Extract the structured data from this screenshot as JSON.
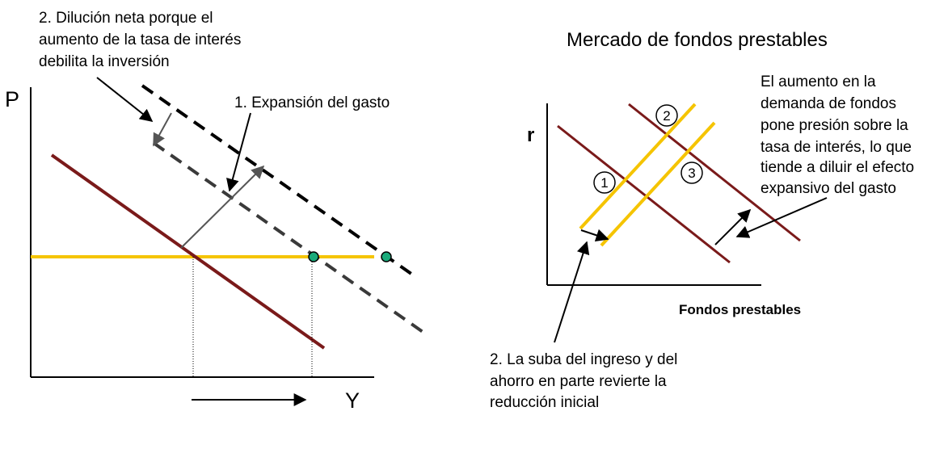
{
  "colors": {
    "demand_dark_red": "#7a1a1a",
    "supply_yellow": "#f5c400",
    "equilibrium_dot": "#1aaa7a",
    "dashed_dark": "#000000",
    "dashed_gray": "#3a3a3a",
    "arrow_gray": "#555555"
  },
  "left_diagram": {
    "y_axis_label": "P",
    "x_axis_label": "Y",
    "annotation_dilution": [
      "2. Dilución neta porque el",
      "aumento de la tasa de interés",
      "debilita la inversión"
    ],
    "annotation_expansion": "1. Expansión del gasto"
  },
  "right_diagram": {
    "title": "Mercado de fondos prestables",
    "y_axis_label": "r",
    "x_axis_label": "Fondos prestables",
    "annotation_demand": [
      "El aumento en la",
      "demanda de fondos",
      "pone presión sobre la",
      "tasa de interés, lo que",
      "tiende a diluir el efecto",
      "expansivo del gasto"
    ],
    "annotation_income": [
      "2. La suba del ingreso y del",
      "ahorro en parte revierte la",
      "reducción inicial"
    ],
    "step_markers": [
      "1",
      "2",
      "3"
    ]
  }
}
